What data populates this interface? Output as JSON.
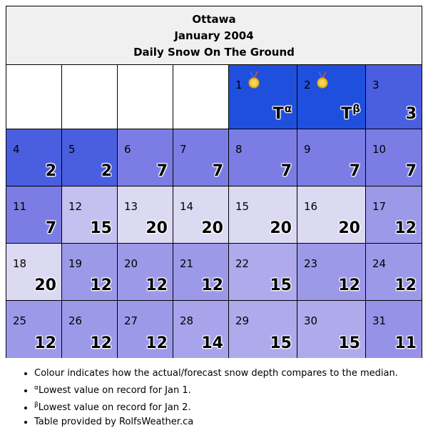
{
  "header": {
    "city": "Ottawa",
    "month": "January 2004",
    "subtitle": "Daily Snow On The Ground"
  },
  "colors": {
    "record_low": "#1f4fdd",
    "very_low": "#4a5ee0",
    "low": "#7b7de4",
    "below": "#9d99e9",
    "near": "#c4c0ef",
    "high": "#dcd9f3",
    "empty": "#ffffff"
  },
  "days": [
    {
      "day": "1",
      "value": "T",
      "sup": "α",
      "medal": true,
      "color": "#1f4fdd"
    },
    {
      "day": "2",
      "value": "T",
      "sup": "β",
      "medal": true,
      "color": "#1f4fdd"
    },
    {
      "day": "3",
      "value": "3",
      "sup": "",
      "medal": false,
      "color": "#4a5ee0"
    },
    {
      "day": "4",
      "value": "2",
      "sup": "",
      "medal": false,
      "color": "#4a5ee0"
    },
    {
      "day": "5",
      "value": "2",
      "sup": "",
      "medal": false,
      "color": "#4a5ee0"
    },
    {
      "day": "6",
      "value": "7",
      "sup": "",
      "medal": false,
      "color": "#7b7de4"
    },
    {
      "day": "7",
      "value": "7",
      "sup": "",
      "medal": false,
      "color": "#7b7de4"
    },
    {
      "day": "8",
      "value": "7",
      "sup": "",
      "medal": false,
      "color": "#7b7de4"
    },
    {
      "day": "9",
      "value": "7",
      "sup": "",
      "medal": false,
      "color": "#7b7de4"
    },
    {
      "day": "10",
      "value": "7",
      "sup": "",
      "medal": false,
      "color": "#7b7de4"
    },
    {
      "day": "11",
      "value": "7",
      "sup": "",
      "medal": false,
      "color": "#7b7de4"
    },
    {
      "day": "12",
      "value": "15",
      "sup": "",
      "medal": false,
      "color": "#c4c0ef"
    },
    {
      "day": "13",
      "value": "20",
      "sup": "",
      "medal": false,
      "color": "#dcd9f3"
    },
    {
      "day": "14",
      "value": "20",
      "sup": "",
      "medal": false,
      "color": "#dcd9f3"
    },
    {
      "day": "15",
      "value": "20",
      "sup": "",
      "medal": false,
      "color": "#dcd9f3"
    },
    {
      "day": "16",
      "value": "20",
      "sup": "",
      "medal": false,
      "color": "#dcd9f3"
    },
    {
      "day": "17",
      "value": "12",
      "sup": "",
      "medal": false,
      "color": "#9d99e9"
    },
    {
      "day": "18",
      "value": "20",
      "sup": "",
      "medal": false,
      "color": "#dcd9f3"
    },
    {
      "day": "19",
      "value": "12",
      "sup": "",
      "medal": false,
      "color": "#9d99e9"
    },
    {
      "day": "20",
      "value": "12",
      "sup": "",
      "medal": false,
      "color": "#9d99e9"
    },
    {
      "day": "21",
      "value": "12",
      "sup": "",
      "medal": false,
      "color": "#9d99e9"
    },
    {
      "day": "22",
      "value": "15",
      "sup": "",
      "medal": false,
      "color": "#aeaaec"
    },
    {
      "day": "23",
      "value": "12",
      "sup": "",
      "medal": false,
      "color": "#9d99e9"
    },
    {
      "day": "24",
      "value": "12",
      "sup": "",
      "medal": false,
      "color": "#9d99e9"
    },
    {
      "day": "25",
      "value": "12",
      "sup": "",
      "medal": false,
      "color": "#9d99e9"
    },
    {
      "day": "26",
      "value": "12",
      "sup": "",
      "medal": false,
      "color": "#9d99e9"
    },
    {
      "day": "27",
      "value": "12",
      "sup": "",
      "medal": false,
      "color": "#9d99e9"
    },
    {
      "day": "28",
      "value": "14",
      "sup": "",
      "medal": false,
      "color": "#a8a4eb"
    },
    {
      "day": "29",
      "value": "15",
      "sup": "",
      "medal": false,
      "color": "#aeaaec"
    },
    {
      "day": "30",
      "value": "15",
      "sup": "",
      "medal": false,
      "color": "#aeaaec"
    },
    {
      "day": "31",
      "value": "11",
      "sup": "",
      "medal": false,
      "color": "#9692e7"
    }
  ],
  "leading_blank_days": 4,
  "notes": {
    "colour": "Colour indicates how the actual/forecast snow depth compares to the median.",
    "alpha_sup": "α",
    "alpha_text": "Lowest value on record for Jan 1.",
    "beta_sup": "β",
    "beta_text": "Lowest value on record for Jan 2.",
    "credit": "Table provided by RolfsWeather.ca"
  },
  "icons": {
    "medal": "gold-medal-icon"
  }
}
